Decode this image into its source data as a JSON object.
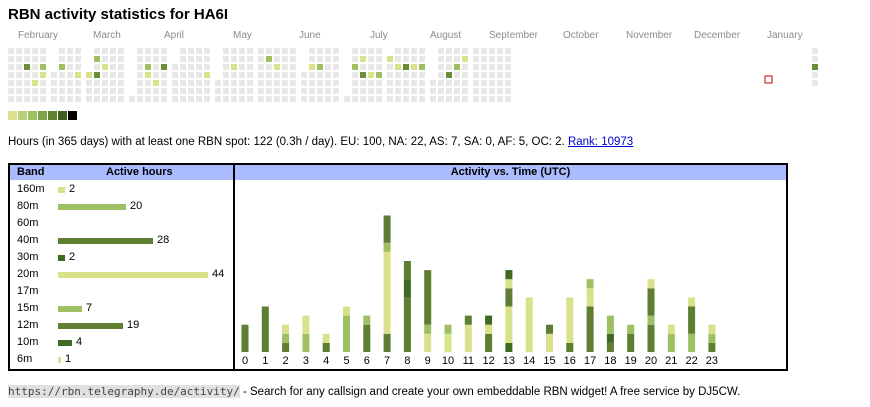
{
  "title": "RBN activity statistics for HA6I",
  "months": [
    "February",
    "March",
    "April",
    "May",
    "June",
    "July",
    "August",
    "September",
    "October",
    "November",
    "December",
    "January"
  ],
  "heatmap_colors": {
    "empty": "#e8e8e8",
    "l1": "#d9e28a",
    "l2": "#9ec063",
    "l3": "#6a8e38",
    "l4": "#4a6e24",
    "today_border": "#cc0000"
  },
  "legend_colors": [
    "#d9e28a",
    "#b6cf79",
    "#9ec063",
    "#7fa34a",
    "#5f8330",
    "#3f5f1f",
    "#000000"
  ],
  "summary": {
    "text": "Hours (in 365 days) with at least one RBN spot: 122 (0.3h / day). EU: 100, NA: 22, AS: 7, SA: 0, AF: 5, OC: 2.",
    "rank_link": "Rank: 10973"
  },
  "band_table": {
    "col_band": "Band",
    "col_hours": "Active hours",
    "bands": [
      {
        "name": "160m",
        "hours": 2,
        "label": "2",
        "color": "#d9e28a"
      },
      {
        "name": "80m",
        "hours": 20,
        "label": "20",
        "color": "#9ec063"
      },
      {
        "name": "60m",
        "hours": 0,
        "label": "",
        "color": "#9ec063"
      },
      {
        "name": "40m",
        "hours": 28,
        "label": "28",
        "color": "#5f7e32"
      },
      {
        "name": "30m",
        "hours": 2,
        "label": "2",
        "color": "#3f6a24"
      },
      {
        "name": "20m",
        "hours": 44,
        "label": "44",
        "color": "#d9e28a"
      },
      {
        "name": "17m",
        "hours": 0,
        "label": "",
        "color": "#9ec063"
      },
      {
        "name": "15m",
        "hours": 7,
        "label": "7",
        "color": "#9ec063"
      },
      {
        "name": "12m",
        "hours": 19,
        "label": "19",
        "color": "#5f7e32"
      },
      {
        "name": "10m",
        "hours": 4,
        "label": "4",
        "color": "#3f6a24"
      },
      {
        "name": "6m",
        "hours": 1,
        "label": "1",
        "color": "#d9e28a"
      }
    ]
  },
  "time_chart": {
    "header": "Activity vs. Time (UTC)",
    "hours": [
      "0",
      "1",
      "2",
      "3",
      "4",
      "5",
      "6",
      "7",
      "8",
      "9",
      "10",
      "11",
      "12",
      "13",
      "14",
      "15",
      "16",
      "17",
      "18",
      "19",
      "20",
      "21",
      "22",
      "23"
    ]
  },
  "chart_data": {
    "type": "bar",
    "title": "Activity vs. Time (UTC)",
    "categories": [
      "0",
      "1",
      "2",
      "3",
      "4",
      "5",
      "6",
      "7",
      "8",
      "9",
      "10",
      "11",
      "12",
      "13",
      "14",
      "15",
      "16",
      "17",
      "18",
      "19",
      "20",
      "21",
      "22",
      "23"
    ],
    "stacks_colors": {
      "20m": "#d9e28a",
      "15m": "#9ec063",
      "40m": "#5f7e32",
      "12m": "#5f7e32",
      "10m": "#3f6a24",
      "80m": "#9ec063"
    },
    "series_segments": [
      [
        {
          "c": "#5f7e32",
          "v": 3
        }
      ],
      [
        {
          "c": "#5f7e32",
          "v": 5
        }
      ],
      [
        {
          "c": "#5f7e32",
          "v": 1
        },
        {
          "c": "#9ec063",
          "v": 1
        },
        {
          "c": "#d9e28a",
          "v": 1
        }
      ],
      [
        {
          "c": "#9ec063",
          "v": 2
        },
        {
          "c": "#d9e28a",
          "v": 2
        }
      ],
      [
        {
          "c": "#5f7e32",
          "v": 1
        },
        {
          "c": "#d9e28a",
          "v": 1
        }
      ],
      [
        {
          "c": "#9ec063",
          "v": 4
        },
        {
          "c": "#d9e28a",
          "v": 1
        }
      ],
      [
        {
          "c": "#5f7e32",
          "v": 3
        },
        {
          "c": "#9ec063",
          "v": 1
        }
      ],
      [
        {
          "c": "#5f7e32",
          "v": 2
        },
        {
          "c": "#d9e28a",
          "v": 9
        },
        {
          "c": "#9ec063",
          "v": 1
        },
        {
          "c": "#5f7e32",
          "v": 3
        }
      ],
      [
        {
          "c": "#5f7e32",
          "v": 6
        },
        {
          "c": "#3f6a24",
          "v": 2
        },
        {
          "c": "#5f7e32",
          "v": 2
        }
      ],
      [
        {
          "c": "#d9e28a",
          "v": 2
        },
        {
          "c": "#9ec063",
          "v": 1
        },
        {
          "c": "#5f7e32",
          "v": 6
        }
      ],
      [
        {
          "c": "#d9e28a",
          "v": 2
        },
        {
          "c": "#9ec063",
          "v": 1
        }
      ],
      [
        {
          "c": "#d9e28a",
          "v": 3
        },
        {
          "c": "#5f7e32",
          "v": 1
        }
      ],
      [
        {
          "c": "#5f7e32",
          "v": 2
        },
        {
          "c": "#d9e28a",
          "v": 1
        },
        {
          "c": "#3f6a24",
          "v": 1
        }
      ],
      [
        {
          "c": "#3f6a24",
          "v": 1
        },
        {
          "c": "#d9e28a",
          "v": 4
        },
        {
          "c": "#5f7e32",
          "v": 2
        },
        {
          "c": "#d9e28a",
          "v": 1
        },
        {
          "c": "#3f6a24",
          "v": 1
        }
      ],
      [
        {
          "c": "#d9e28a",
          "v": 6
        }
      ],
      [
        {
          "c": "#d9e28a",
          "v": 2
        },
        {
          "c": "#5f7e32",
          "v": 1
        }
      ],
      [
        {
          "c": "#5f7e32",
          "v": 1
        },
        {
          "c": "#d9e28a",
          "v": 5
        }
      ],
      [
        {
          "c": "#5f7e32",
          "v": 5
        },
        {
          "c": "#d9e28a",
          "v": 2
        },
        {
          "c": "#9ec063",
          "v": 1
        }
      ],
      [
        {
          "c": "#5f7e32",
          "v": 1
        },
        {
          "c": "#3f6a24",
          "v": 1
        },
        {
          "c": "#9ec063",
          "v": 2
        }
      ],
      [
        {
          "c": "#5f7e32",
          "v": 2
        },
        {
          "c": "#9ec063",
          "v": 1
        }
      ],
      [
        {
          "c": "#5f7e32",
          "v": 3
        },
        {
          "c": "#9ec063",
          "v": 1
        },
        {
          "c": "#5f7e32",
          "v": 3
        },
        {
          "c": "#d9e28a",
          "v": 1
        }
      ],
      [
        {
          "c": "#9ec063",
          "v": 2
        },
        {
          "c": "#d9e28a",
          "v": 1
        }
      ],
      [
        {
          "c": "#9ec063",
          "v": 2
        },
        {
          "c": "#5f7e32",
          "v": 3
        },
        {
          "c": "#d9e28a",
          "v": 1
        }
      ],
      [
        {
          "c": "#5f7e32",
          "v": 1
        },
        {
          "c": "#9ec063",
          "v": 1
        },
        {
          "c": "#d9e28a",
          "v": 1
        }
      ]
    ],
    "ylim": [
      0,
      16
    ]
  },
  "footer": {
    "url": "https://rbn.telegraphy.de/activity/",
    "text": " - Search for any callsign and create your own embeddable RBN widget! A free service by DJ5CW."
  }
}
